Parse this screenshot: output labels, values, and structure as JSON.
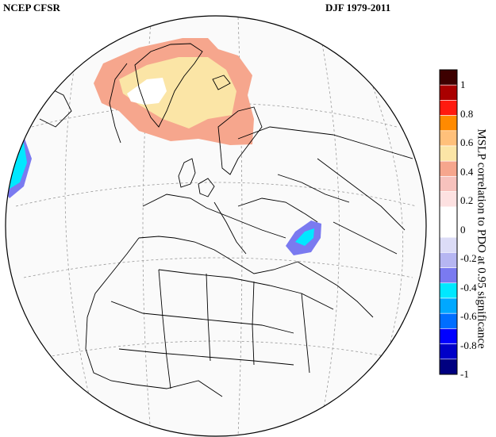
{
  "header": {
    "left_title": "NCEP CFSR",
    "right_title": "DJF 1979-2011"
  },
  "colorbar": {
    "title": "MSLP correlation to PDO at 0.95 significance",
    "labels": [
      "1",
      "0.8",
      "0.6",
      "0.4",
      "0.2",
      "0",
      "-0.2",
      "-0.4",
      "-0.6",
      "-0.8",
      "-1"
    ],
    "colors": [
      "#3d0000",
      "#a90000",
      "#ff1a0f",
      "#ff8a00",
      "#ffc07a",
      "#fbe5a6",
      "#f6a68d",
      "#f7c2bd",
      "#fde1e1",
      "#ffffff",
      "#ffffff",
      "#dcdcf7",
      "#b6b6f2",
      "#7a7af0",
      "#00e8ff",
      "#00a8ff",
      "#006eff",
      "#0000ff",
      "#0000c8",
      "#000080"
    ]
  },
  "map": {
    "projection": "orthographic",
    "positive_regions": [
      "Greenland / North Atlantic",
      "Scandinavia"
    ],
    "negative_regions": [
      "Western North Atlantic margin",
      "Caspian Sea / Caucasus"
    ]
  }
}
